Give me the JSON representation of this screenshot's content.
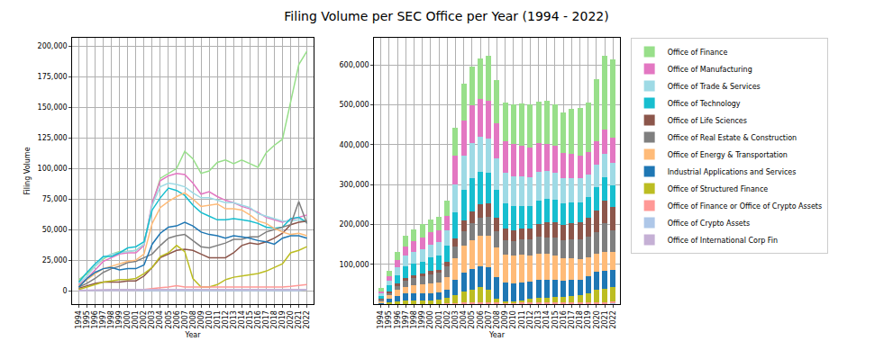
{
  "title": "Filing Volume per SEC Office per Year (1994 - 2022)",
  "chart_data": [
    {
      "type": "line",
      "xlabel": "Year",
      "ylabel": "Filing Volume",
      "grid": true,
      "categories": [
        "1994",
        "1995",
        "1996",
        "1997",
        "1998",
        "1999",
        "2000",
        "2001",
        "2002",
        "2003",
        "2004",
        "2005",
        "2006",
        "2007",
        "2008",
        "2009",
        "2010",
        "2011",
        "2012",
        "2013",
        "2014",
        "2015",
        "2016",
        "2017",
        "2018",
        "2019",
        "2020",
        "2021",
        "2022"
      ],
      "ylim": [
        -11000,
        207000
      ],
      "yticks": [
        0,
        {
          "value": 25000,
          "label": "25,000"
        },
        {
          "value": 50000,
          "label": "50,000"
        },
        {
          "value": 75000,
          "label": "75,000"
        },
        {
          "value": 100000,
          "label": "100,000"
        },
        {
          "value": 125000,
          "label": "125,000"
        },
        {
          "value": 150000,
          "label": "150,000"
        },
        {
          "value": 175000,
          "label": "175,000"
        },
        {
          "value": 200000,
          "label": "200,000"
        }
      ],
      "series": [
        {
          "name": "Office of Finance",
          "color": "#98df8a",
          "values": [
            9000,
            14000,
            20000,
            26000,
            30000,
            32000,
            32000,
            33000,
            38000,
            70000,
            92000,
            96000,
            100000,
            114000,
            108000,
            96000,
            98000,
            105000,
            107000,
            104000,
            107000,
            104000,
            101000,
            113000,
            119000,
            124000,
            155000,
            185000,
            196000
          ]
        },
        {
          "name": "Office of Manufacturing",
          "color": "#e377c2",
          "values": [
            5000,
            10000,
            17000,
            24000,
            27000,
            30000,
            31000,
            31000,
            37000,
            72000,
            90000,
            94000,
            96000,
            95000,
            88000,
            79000,
            81000,
            77000,
            74000,
            72000,
            69000,
            67000,
            64000,
            60000,
            58000,
            56000,
            58000,
            60000,
            62000
          ]
        },
        {
          "name": "Office of Trade & Services",
          "color": "#9edae5",
          "values": [
            6000,
            12000,
            20000,
            27000,
            30000,
            31000,
            32000,
            33000,
            38000,
            70000,
            85000,
            88000,
            87000,
            85000,
            80000,
            76000,
            76000,
            74000,
            72000,
            72000,
            70000,
            68000,
            63000,
            61000,
            59000,
            57000,
            57000,
            58000,
            56000
          ]
        },
        {
          "name": "Office of Technology",
          "color": "#17becf",
          "values": [
            7000,
            15000,
            22000,
            28000,
            28000,
            31000,
            35000,
            36000,
            40000,
            66000,
            76000,
            84000,
            82000,
            78000,
            70000,
            64000,
            61000,
            58000,
            58000,
            59000,
            58000,
            57000,
            55000,
            52000,
            51000,
            52000,
            59000,
            60000,
            56000
          ]
        },
        {
          "name": "Office of Life Sciences",
          "color": "#8c564b",
          "values": [
            2000,
            4000,
            6000,
            7000,
            7000,
            7000,
            8000,
            8000,
            12000,
            19000,
            27000,
            30000,
            33000,
            34000,
            33000,
            30000,
            27000,
            27000,
            27000,
            31000,
            37000,
            39000,
            38000,
            40000,
            43000,
            47000,
            54000,
            56000,
            57000
          ]
        },
        {
          "name": "Office of Real Estate & Construction",
          "color": "#7f7f7f",
          "values": [
            3000,
            6000,
            10000,
            15000,
            18000,
            20000,
            23000,
            24000,
            27000,
            30000,
            37000,
            43000,
            45000,
            46000,
            41000,
            36000,
            35000,
            37000,
            39000,
            42000,
            42000,
            44000,
            44000,
            48000,
            50000,
            52000,
            54000,
            73000,
            55000
          ]
        },
        {
          "name": "Office of Energy & Transportation",
          "color": "#ffbb78",
          "values": [
            4000,
            9000,
            14000,
            18000,
            20000,
            22000,
            24000,
            25000,
            30000,
            55000,
            68000,
            73000,
            77000,
            80000,
            75000,
            69000,
            70000,
            71000,
            67000,
            67000,
            66000,
            62000,
            57000,
            55000,
            51000,
            48000,
            46000,
            47000,
            45000
          ]
        },
        {
          "name": "Industrial Applications and Services",
          "color": "#1f77b4",
          "values": [
            3000,
            10000,
            15000,
            18000,
            19000,
            17000,
            18000,
            18000,
            21000,
            38000,
            47000,
            52000,
            53000,
            56000,
            53000,
            48000,
            46000,
            45000,
            43000,
            45000,
            44000,
            43000,
            41000,
            40000,
            38000,
            43000,
            45000,
            45000,
            43000
          ]
        },
        {
          "name": "Office of Structured Finance",
          "color": "#bcbd22",
          "values": [
            1000,
            3000,
            5000,
            7000,
            8000,
            9000,
            9000,
            10000,
            14000,
            19000,
            28000,
            31000,
            37000,
            32000,
            10000,
            3000,
            3000,
            5000,
            9000,
            11000,
            12000,
            13000,
            14000,
            16000,
            19000,
            22000,
            31000,
            33000,
            36000
          ]
        },
        {
          "name": "Office of Finance or Office of Crypto Assets",
          "color": "#ff9896",
          "values": [
            0,
            0,
            0,
            0,
            0,
            0,
            0,
            0,
            1000,
            2000,
            2500,
            3000,
            4000,
            3000,
            3000,
            2500,
            2500,
            3000,
            3000,
            3000,
            3000,
            3000,
            3000,
            3000,
            3000,
            3000,
            3500,
            4000,
            5000
          ]
        },
        {
          "name": "Office of Crypto Assets",
          "color": "#aec7e8",
          "values": [
            0,
            0,
            0,
            0,
            0,
            0,
            0,
            0,
            0,
            0,
            0,
            0,
            0,
            0,
            0,
            0,
            0,
            0,
            0,
            0,
            0,
            0,
            0,
            0,
            0,
            0,
            0,
            0,
            1000
          ]
        },
        {
          "name": "Office of International Corp Fin",
          "color": "#c5b0d5",
          "values": [
            300,
            500,
            1000,
            1000,
            1000,
            1000,
            1000,
            1000,
            1000,
            1000,
            1000,
            1000,
            1000,
            1000,
            1000,
            1000,
            1000,
            1000,
            1000,
            1000,
            1000,
            1000,
            1000,
            1000,
            1000,
            1000,
            1000,
            1000,
            1000
          ]
        }
      ]
    },
    {
      "type": "bar",
      "stacked": true,
      "xlabel": "Year",
      "grid": true,
      "legend": "right",
      "categories": [
        "1994",
        "1995",
        "1996",
        "1997",
        "1998",
        "1999",
        "2000",
        "2001",
        "2002",
        "2003",
        "2004",
        "2005",
        "2006",
        "2007",
        "2008",
        "2009",
        "2010",
        "2011",
        "2012",
        "2013",
        "2014",
        "2015",
        "2016",
        "2017",
        "2018",
        "2019",
        "2020",
        "2021",
        "2022"
      ],
      "ylim": [
        0,
        668000
      ],
      "yticks": [
        {
          "value": 100000,
          "label": "100,000"
        },
        {
          "value": 200000,
          "label": "200,000"
        },
        {
          "value": 300000,
          "label": "300,000"
        },
        {
          "value": 400000,
          "label": "400,000"
        },
        {
          "value": 500000,
          "label": "500,000"
        },
        {
          "value": 600000,
          "label": "600,000"
        }
      ],
      "series": [
        {
          "name": "Office of Finance",
          "color": "#98df8a",
          "values": [
            9000,
            14000,
            20000,
            26000,
            30000,
            32000,
            32000,
            33000,
            38000,
            70000,
            92000,
            96000,
            100000,
            114000,
            108000,
            96000,
            98000,
            105000,
            107000,
            104000,
            107000,
            104000,
            101000,
            113000,
            119000,
            124000,
            155000,
            185000,
            196000
          ]
        },
        {
          "name": "Office of Manufacturing",
          "color": "#e377c2",
          "values": [
            5000,
            10000,
            17000,
            24000,
            27000,
            30000,
            31000,
            31000,
            37000,
            72000,
            90000,
            94000,
            96000,
            95000,
            88000,
            79000,
            81000,
            77000,
            74000,
            72000,
            69000,
            67000,
            64000,
            60000,
            58000,
            56000,
            58000,
            60000,
            62000
          ]
        },
        {
          "name": "Office of Trade & Services",
          "color": "#9edae5",
          "values": [
            6000,
            12000,
            20000,
            27000,
            30000,
            31000,
            32000,
            33000,
            38000,
            70000,
            85000,
            88000,
            87000,
            85000,
            80000,
            76000,
            76000,
            74000,
            72000,
            72000,
            70000,
            68000,
            63000,
            61000,
            59000,
            57000,
            57000,
            58000,
            56000
          ]
        },
        {
          "name": "Office of Technology",
          "color": "#17becf",
          "values": [
            7000,
            15000,
            22000,
            28000,
            28000,
            31000,
            35000,
            36000,
            40000,
            66000,
            76000,
            84000,
            82000,
            78000,
            70000,
            64000,
            61000,
            58000,
            58000,
            59000,
            58000,
            57000,
            55000,
            52000,
            51000,
            52000,
            59000,
            60000,
            56000
          ]
        },
        {
          "name": "Office of Life Sciences",
          "color": "#8c564b",
          "values": [
            2000,
            4000,
            6000,
            7000,
            7000,
            7000,
            8000,
            8000,
            12000,
            19000,
            27000,
            30000,
            33000,
            34000,
            33000,
            30000,
            27000,
            27000,
            27000,
            31000,
            37000,
            39000,
            38000,
            40000,
            43000,
            47000,
            54000,
            56000,
            57000
          ]
        },
        {
          "name": "Office of Real Estate & Construction",
          "color": "#7f7f7f",
          "values": [
            3000,
            6000,
            10000,
            15000,
            18000,
            20000,
            23000,
            24000,
            27000,
            30000,
            37000,
            43000,
            45000,
            46000,
            41000,
            36000,
            35000,
            37000,
            39000,
            42000,
            42000,
            44000,
            44000,
            48000,
            50000,
            52000,
            54000,
            73000,
            55000
          ]
        },
        {
          "name": "Office of Energy & Transportation",
          "color": "#ffbb78",
          "values": [
            4000,
            9000,
            14000,
            18000,
            20000,
            22000,
            24000,
            25000,
            30000,
            55000,
            68000,
            73000,
            77000,
            80000,
            75000,
            69000,
            70000,
            71000,
            67000,
            67000,
            66000,
            62000,
            57000,
            55000,
            51000,
            48000,
            46000,
            47000,
            45000
          ]
        },
        {
          "name": "Industrial Applications and Services",
          "color": "#1f77b4",
          "values": [
            3000,
            10000,
            15000,
            18000,
            19000,
            17000,
            18000,
            18000,
            21000,
            38000,
            47000,
            52000,
            53000,
            56000,
            53000,
            48000,
            46000,
            45000,
            43000,
            45000,
            44000,
            43000,
            41000,
            40000,
            38000,
            43000,
            45000,
            45000,
            43000
          ]
        },
        {
          "name": "Office of Structured Finance",
          "color": "#bcbd22",
          "values": [
            1000,
            3000,
            5000,
            7000,
            8000,
            9000,
            9000,
            10000,
            14000,
            19000,
            28000,
            31000,
            37000,
            32000,
            10000,
            3000,
            3000,
            5000,
            9000,
            11000,
            12000,
            13000,
            14000,
            16000,
            19000,
            22000,
            31000,
            33000,
            36000
          ]
        },
        {
          "name": "Office of Finance or Office of Crypto Assets",
          "color": "#ff9896",
          "values": [
            0,
            0,
            0,
            0,
            0,
            0,
            0,
            0,
            1000,
            2000,
            2500,
            3000,
            4000,
            3000,
            3000,
            2500,
            2500,
            3000,
            3000,
            3000,
            3000,
            3000,
            3000,
            3000,
            3000,
            3000,
            3500,
            4000,
            5000
          ]
        },
        {
          "name": "Office of Crypto Assets",
          "color": "#aec7e8",
          "values": [
            0,
            0,
            0,
            0,
            0,
            0,
            0,
            0,
            0,
            0,
            0,
            0,
            0,
            0,
            0,
            0,
            0,
            0,
            0,
            0,
            0,
            0,
            0,
            0,
            0,
            0,
            0,
            0,
            1000
          ]
        },
        {
          "name": "Office of International Corp Fin",
          "color": "#c5b0d5",
          "values": [
            300,
            500,
            1000,
            1000,
            1000,
            1000,
            1000,
            1000,
            1000,
            1000,
            1000,
            1000,
            1000,
            1000,
            1000,
            1000,
            1000,
            1000,
            1000,
            1000,
            1000,
            1000,
            1000,
            1000,
            1000,
            1000,
            1000,
            1000,
            1000
          ]
        }
      ]
    }
  ]
}
